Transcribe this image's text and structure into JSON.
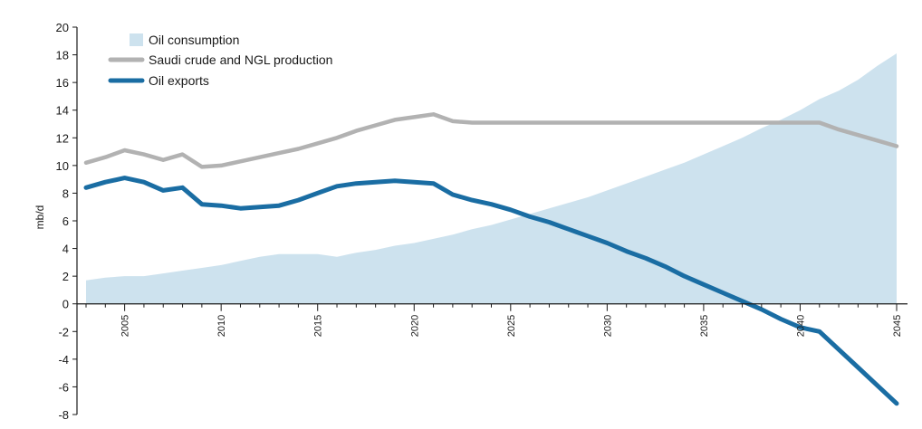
{
  "chart_data": {
    "type": "area+line",
    "ylabel": "mb/d",
    "xlabel": "",
    "ylim": [
      -8,
      20
    ],
    "xlim": [
      2003,
      2045
    ],
    "y_ticks": [
      "20",
      "18",
      "16",
      "14",
      "12",
      "10",
      "8",
      "6",
      "4",
      "2",
      "0",
      "-2",
      "-4",
      "-6",
      "-8"
    ],
    "x_tick_labels": [
      "2005",
      "2010",
      "2015",
      "2020",
      "2025",
      "2030",
      "2035",
      "2040",
      "2045"
    ],
    "x_tick_values": [
      2005,
      2010,
      2015,
      2020,
      2025,
      2030,
      2035,
      2040,
      2045
    ],
    "grid": false,
    "legend_position": "top-left",
    "colors": {
      "consumption": "#cde2ee",
      "production": "#b2b2b2",
      "exports": "#1a6da3",
      "axis": "#1a1a1a"
    },
    "legend": [
      {
        "key": "consumption",
        "label": "Oil consumption",
        "kind": "area"
      },
      {
        "key": "production",
        "label": "Saudi crude and NGL production",
        "kind": "line"
      },
      {
        "key": "exports",
        "label": "Oil exports",
        "kind": "line"
      }
    ],
    "x": [
      2003,
      2004,
      2005,
      2006,
      2007,
      2008,
      2009,
      2010,
      2011,
      2012,
      2013,
      2014,
      2015,
      2016,
      2017,
      2018,
      2019,
      2020,
      2021,
      2022,
      2023,
      2024,
      2025,
      2026,
      2027,
      2028,
      2029,
      2030,
      2031,
      2032,
      2033,
      2034,
      2035,
      2036,
      2037,
      2038,
      2039,
      2040,
      2041,
      2042,
      2043,
      2044,
      2045
    ],
    "series": [
      {
        "name": "Oil consumption",
        "key": "consumption",
        "values": [
          1.7,
          1.9,
          2.0,
          2.0,
          2.2,
          2.4,
          2.6,
          2.8,
          3.1,
          3.4,
          3.6,
          3.6,
          3.6,
          3.4,
          3.7,
          3.9,
          4.2,
          4.4,
          4.7,
          5.0,
          5.4,
          5.7,
          6.1,
          6.5,
          6.9,
          7.3,
          7.7,
          8.2,
          8.7,
          9.2,
          9.7,
          10.2,
          10.8,
          11.4,
          12.0,
          12.7,
          13.3,
          14.0,
          14.8,
          15.4,
          16.2,
          17.2,
          18.1
        ]
      },
      {
        "name": "Saudi crude and NGL production",
        "key": "production",
        "values": [
          10.2,
          10.6,
          11.1,
          10.8,
          10.4,
          10.8,
          9.9,
          10.0,
          10.3,
          10.6,
          10.9,
          11.2,
          11.6,
          12.0,
          12.5,
          12.9,
          13.3,
          13.5,
          13.7,
          13.2,
          13.1,
          13.1,
          13.1,
          13.1,
          13.1,
          13.1,
          13.1,
          13.1,
          13.1,
          13.1,
          13.1,
          13.1,
          13.1,
          13.1,
          13.1,
          13.1,
          13.1,
          13.1,
          13.1,
          12.6,
          12.2,
          11.8,
          11.4
        ]
      },
      {
        "name": "Oil exports",
        "key": "exports",
        "values": [
          8.4,
          8.8,
          9.1,
          8.8,
          8.2,
          8.4,
          7.2,
          7.1,
          6.9,
          7.0,
          7.1,
          7.5,
          8.0,
          8.5,
          8.7,
          8.8,
          8.9,
          8.8,
          8.7,
          7.9,
          7.5,
          7.2,
          6.8,
          6.3,
          5.9,
          5.4,
          4.9,
          4.4,
          3.8,
          3.3,
          2.7,
          2.0,
          1.4,
          0.8,
          0.2,
          -0.4,
          -1.1,
          -1.7,
          -2.0,
          -3.3,
          -4.6,
          -5.9,
          -7.2
        ]
      }
    ]
  }
}
